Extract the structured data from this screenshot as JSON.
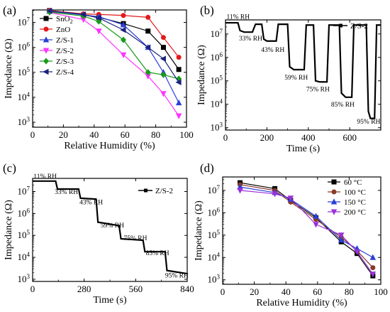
{
  "chart_data": [
    {
      "panel": "(a)",
      "type": "line",
      "xlabel": "Relative Humidity (%)",
      "ylabel": "Impedance (Ω)",
      "xlim": [
        0,
        100
      ],
      "xticks": [
        0,
        20,
        40,
        60,
        80,
        100
      ],
      "ylim_log10": [
        2.8,
        7.5
      ],
      "yticks_log10": [
        3,
        4,
        5,
        6,
        7
      ],
      "yscale": "log",
      "legend_position": "top-left",
      "series": [
        {
          "name": "SnO2",
          "color": "#000000",
          "marker": "square",
          "x": [
            11,
            33,
            43,
            59,
            75,
            85,
            95
          ],
          "y": [
            30000000.0,
            20000000.0,
            16000000.0,
            9000000.0,
            4500000.0,
            1000000.0,
            130000.0
          ]
        },
        {
          "name": "ZnO",
          "color": "#e41a1c",
          "marker": "circle",
          "x": [
            11,
            33,
            43,
            59,
            75,
            85,
            95
          ],
          "y": [
            30000000.0,
            22000000.0,
            21000000.0,
            19000000.0,
            16000000.0,
            2500000.0,
            400000.0
          ]
        },
        {
          "name": "Z/S-1",
          "color": "#2a3fd6",
          "marker": "triangle-up",
          "x": [
            11,
            33,
            43,
            59,
            75,
            85,
            95
          ],
          "y": [
            28000000.0,
            20000000.0,
            17000000.0,
            8000000.0,
            1000000.0,
            100000.0,
            6000.0
          ]
        },
        {
          "name": "Z/S-2",
          "color": "#ff33ff",
          "marker": "triangle-down",
          "x": [
            11,
            33,
            43,
            59,
            75,
            85,
            95
          ],
          "y": [
            25000000.0,
            13000000.0,
            4500000.0,
            500000.0,
            70000.0,
            14000.0,
            1800.0
          ]
        },
        {
          "name": "Z/S-3",
          "color": "#1a9a1a",
          "marker": "diamond",
          "x": [
            11,
            33,
            43,
            59,
            75,
            85,
            95
          ],
          "y": [
            26000000.0,
            18000000.0,
            11000000.0,
            2000000.0,
            100000.0,
            80000.0,
            55000.0
          ]
        },
        {
          "name": "Z/S-4",
          "color": "#1a237e",
          "marker": "triangle-left",
          "x": [
            11,
            33,
            43,
            59,
            75,
            85,
            95
          ],
          "y": [
            29000000.0,
            21000000.0,
            15000000.0,
            5000000.0,
            1000000.0,
            350000.0,
            40000.0
          ]
        }
      ]
    },
    {
      "panel": "(b)",
      "type": "line",
      "xlabel": "Time (s)",
      "ylabel": "Impedance (Ω)",
      "xlim": [
        0,
        750
      ],
      "xticks": [
        0,
        200,
        400,
        600
      ],
      "ylim_log10": [
        2.9,
        7.6
      ],
      "yticks_log10": [
        3,
        4,
        5,
        6,
        7
      ],
      "yscale": "log",
      "legend": "Z/S-2",
      "legend_position": "top-right",
      "x": [
        0,
        60,
        70,
        90,
        130,
        145,
        175,
        185,
        200,
        245,
        255,
        270,
        300,
        310,
        330,
        380,
        390,
        400,
        425,
        435,
        455,
        490,
        500,
        510,
        550,
        560,
        580,
        610,
        620,
        630,
        680,
        690,
        700,
        720,
        730,
        750
      ],
      "y": [
        30000000.0,
        30000000.0,
        14000000.0,
        12000000.0,
        12000000.0,
        26000000.0,
        26000000.0,
        6000000.0,
        5000000.0,
        5000000.0,
        26000000.0,
        26000000.0,
        26000000.0,
        400000.0,
        300000.0,
        300000.0,
        24000000.0,
        24000000.0,
        24000000.0,
        100000.0,
        90000.0,
        90000.0,
        24000000.0,
        24000000.0,
        24000000.0,
        30000.0,
        20000.0,
        20000.0,
        24000000.0,
        24000000.0,
        24000000.0,
        5000.0,
        2500.0,
        2500.0,
        24000000.0,
        24000000.0
      ],
      "annotations": [
        {
          "text": "11% RH",
          "x": 5,
          "y_log10": 7.65
        },
        {
          "text": "33% RH",
          "x": 65,
          "y_log10": 6.72
        },
        {
          "text": "43% RH",
          "x": 172,
          "y_log10": 6.23
        },
        {
          "text": "59% RH",
          "x": 285,
          "y_log10": 5.06
        },
        {
          "text": "75% RH",
          "x": 390,
          "y_log10": 4.56
        },
        {
          "text": "85% RH",
          "x": 510,
          "y_log10": 3.9
        },
        {
          "text": "95% RH",
          "x": 635,
          "y_log10": 3.17
        }
      ]
    },
    {
      "panel": "(c)",
      "type": "line",
      "xlabel": "Time (s)",
      "ylabel": "Impedance (Ω)",
      "xlim": [
        0,
        840
      ],
      "xticks": [
        0,
        280,
        560,
        840
      ],
      "ylim_log10": [
        2.9,
        7.6
      ],
      "yticks_log10": [
        3,
        4,
        5,
        6,
        7
      ],
      "yscale": "log",
      "legend": "Z/S-2",
      "legend_position": "top-right",
      "x": [
        0,
        125,
        135,
        250,
        260,
        345,
        355,
        470,
        480,
        600,
        610,
        720,
        730,
        840
      ],
      "y": [
        30000000.0,
        30000000.0,
        13000000.0,
        13000000.0,
        5000000.0,
        4500000.0,
        400000.0,
        280000.0,
        70000.0,
        60000.0,
        18000.0,
        18000.0,
        2500.0,
        1800.0
      ],
      "annotations": [
        {
          "text": "11% RH",
          "x": 5,
          "y_log10": 7.6
        },
        {
          "text": "33% RH",
          "x": 120,
          "y_log10": 6.88
        },
        {
          "text": "43% RH",
          "x": 255,
          "y_log10": 6.42
        },
        {
          "text": "59% RH",
          "x": 370,
          "y_log10": 5.37
        },
        {
          "text": "75% RH",
          "x": 495,
          "y_log10": 4.78
        },
        {
          "text": "85% RH",
          "x": 615,
          "y_log10": 4.1
        },
        {
          "text": "95% RH",
          "x": 720,
          "y_log10": 3.08
        }
      ]
    },
    {
      "panel": "(d)",
      "type": "line",
      "xlabel": "Relative Humidity (%)",
      "ylabel": "Impedance (Ω)",
      "xlim": [
        0,
        100
      ],
      "xticks": [
        0,
        20,
        40,
        60,
        80,
        100
      ],
      "ylim_log10": [
        2.8,
        7.6
      ],
      "yticks_log10": [
        3,
        4,
        5,
        6,
        7
      ],
      "yscale": "log",
      "legend_position": "top-right",
      "series": [
        {
          "name": "60 °C",
          "color": "#000000",
          "marker": "square",
          "x": [
            11,
            33,
            43,
            59,
            75,
            85,
            95
          ],
          "y": [
            22000000.0,
            12000000.0,
            3500000.0,
            600000.0,
            50000.0,
            15000.0,
            1500.0
          ]
        },
        {
          "name": "100 °C",
          "color": "#8b3a2a",
          "marker": "circle",
          "x": [
            11,
            33,
            43,
            59,
            75,
            85,
            95
          ],
          "y": [
            18000000.0,
            10000000.0,
            3000000.0,
            500000.0,
            80000.0,
            20000.0,
            3500.0
          ]
        },
        {
          "name": "150 °C",
          "color": "#2a3fd6",
          "marker": "triangle-up",
          "x": [
            11,
            33,
            43,
            59,
            75,
            85,
            95
          ],
          "y": [
            14000000.0,
            8000000.0,
            4000000.0,
            700000.0,
            60000.0,
            25000.0,
            10000.0
          ]
        },
        {
          "name": "200 °C",
          "color": "#9b30d9",
          "marker": "triangle-down",
          "x": [
            11,
            33,
            43,
            59,
            75,
            85,
            95
          ],
          "y": [
            10000000.0,
            7000000.0,
            4500000.0,
            300000.0,
            100000.0,
            18000.0,
            1800.0
          ]
        }
      ]
    }
  ]
}
